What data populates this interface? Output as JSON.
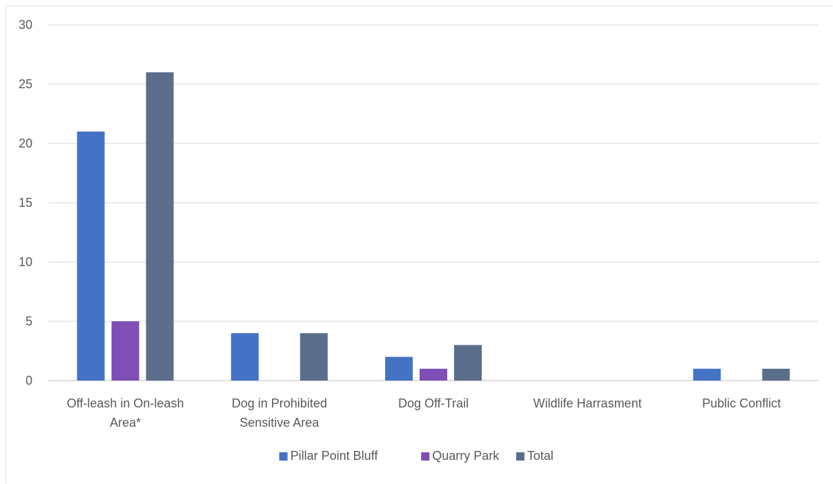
{
  "chart_data": {
    "type": "bar",
    "categories": [
      [
        "Off-leash in On-leash",
        "Area*"
      ],
      [
        "Dog in Prohibited",
        "Sensitive Area"
      ],
      [
        "Dog Off-Trail"
      ],
      [
        "Wildlife Harrasment"
      ],
      [
        "Public Conflict"
      ]
    ],
    "series": [
      {
        "name": "Pillar Point Bluff",
        "values": [
          21,
          4,
          2,
          0,
          1
        ],
        "color": "#4472c4"
      },
      {
        "name": "Quarry Park",
        "values": [
          5,
          0,
          1,
          0,
          0
        ],
        "color": "#7f4fb5"
      },
      {
        "name": "Total",
        "values": [
          26,
          4,
          3,
          0,
          1
        ],
        "color": "#5a6e8c"
      }
    ],
    "yticks": [
      0,
      5,
      10,
      15,
      20,
      25,
      30
    ],
    "ylim": [
      0,
      30
    ],
    "grid": true,
    "legend_position": "bottom",
    "title": "",
    "xlabel": "",
    "ylabel": ""
  }
}
